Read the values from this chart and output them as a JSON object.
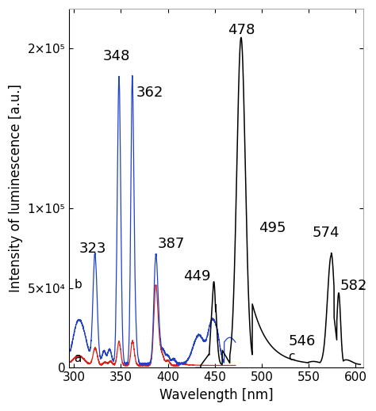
{
  "xlabel": "Wavelength [nm]",
  "ylabel": "Intensity of luminescence [a.u.]",
  "xlim": [
    295,
    608
  ],
  "ylim": [
    0,
    225000
  ],
  "yticks": [
    0,
    50000,
    100000,
    200000
  ],
  "ytick_labels": [
    "0",
    "5×10⁴",
    "1×10⁵",
    "2×10⁵"
  ],
  "xticks": [
    300,
    350,
    400,
    450,
    500,
    550,
    600
  ],
  "curve_a_color": "#d9261c",
  "curve_b_color": "#2040c8",
  "curve_c_color": "#000000",
  "background_color": "#ffffff",
  "label_fontsize": 12,
  "tick_fontsize": 11,
  "annotation_fontsize": 13
}
